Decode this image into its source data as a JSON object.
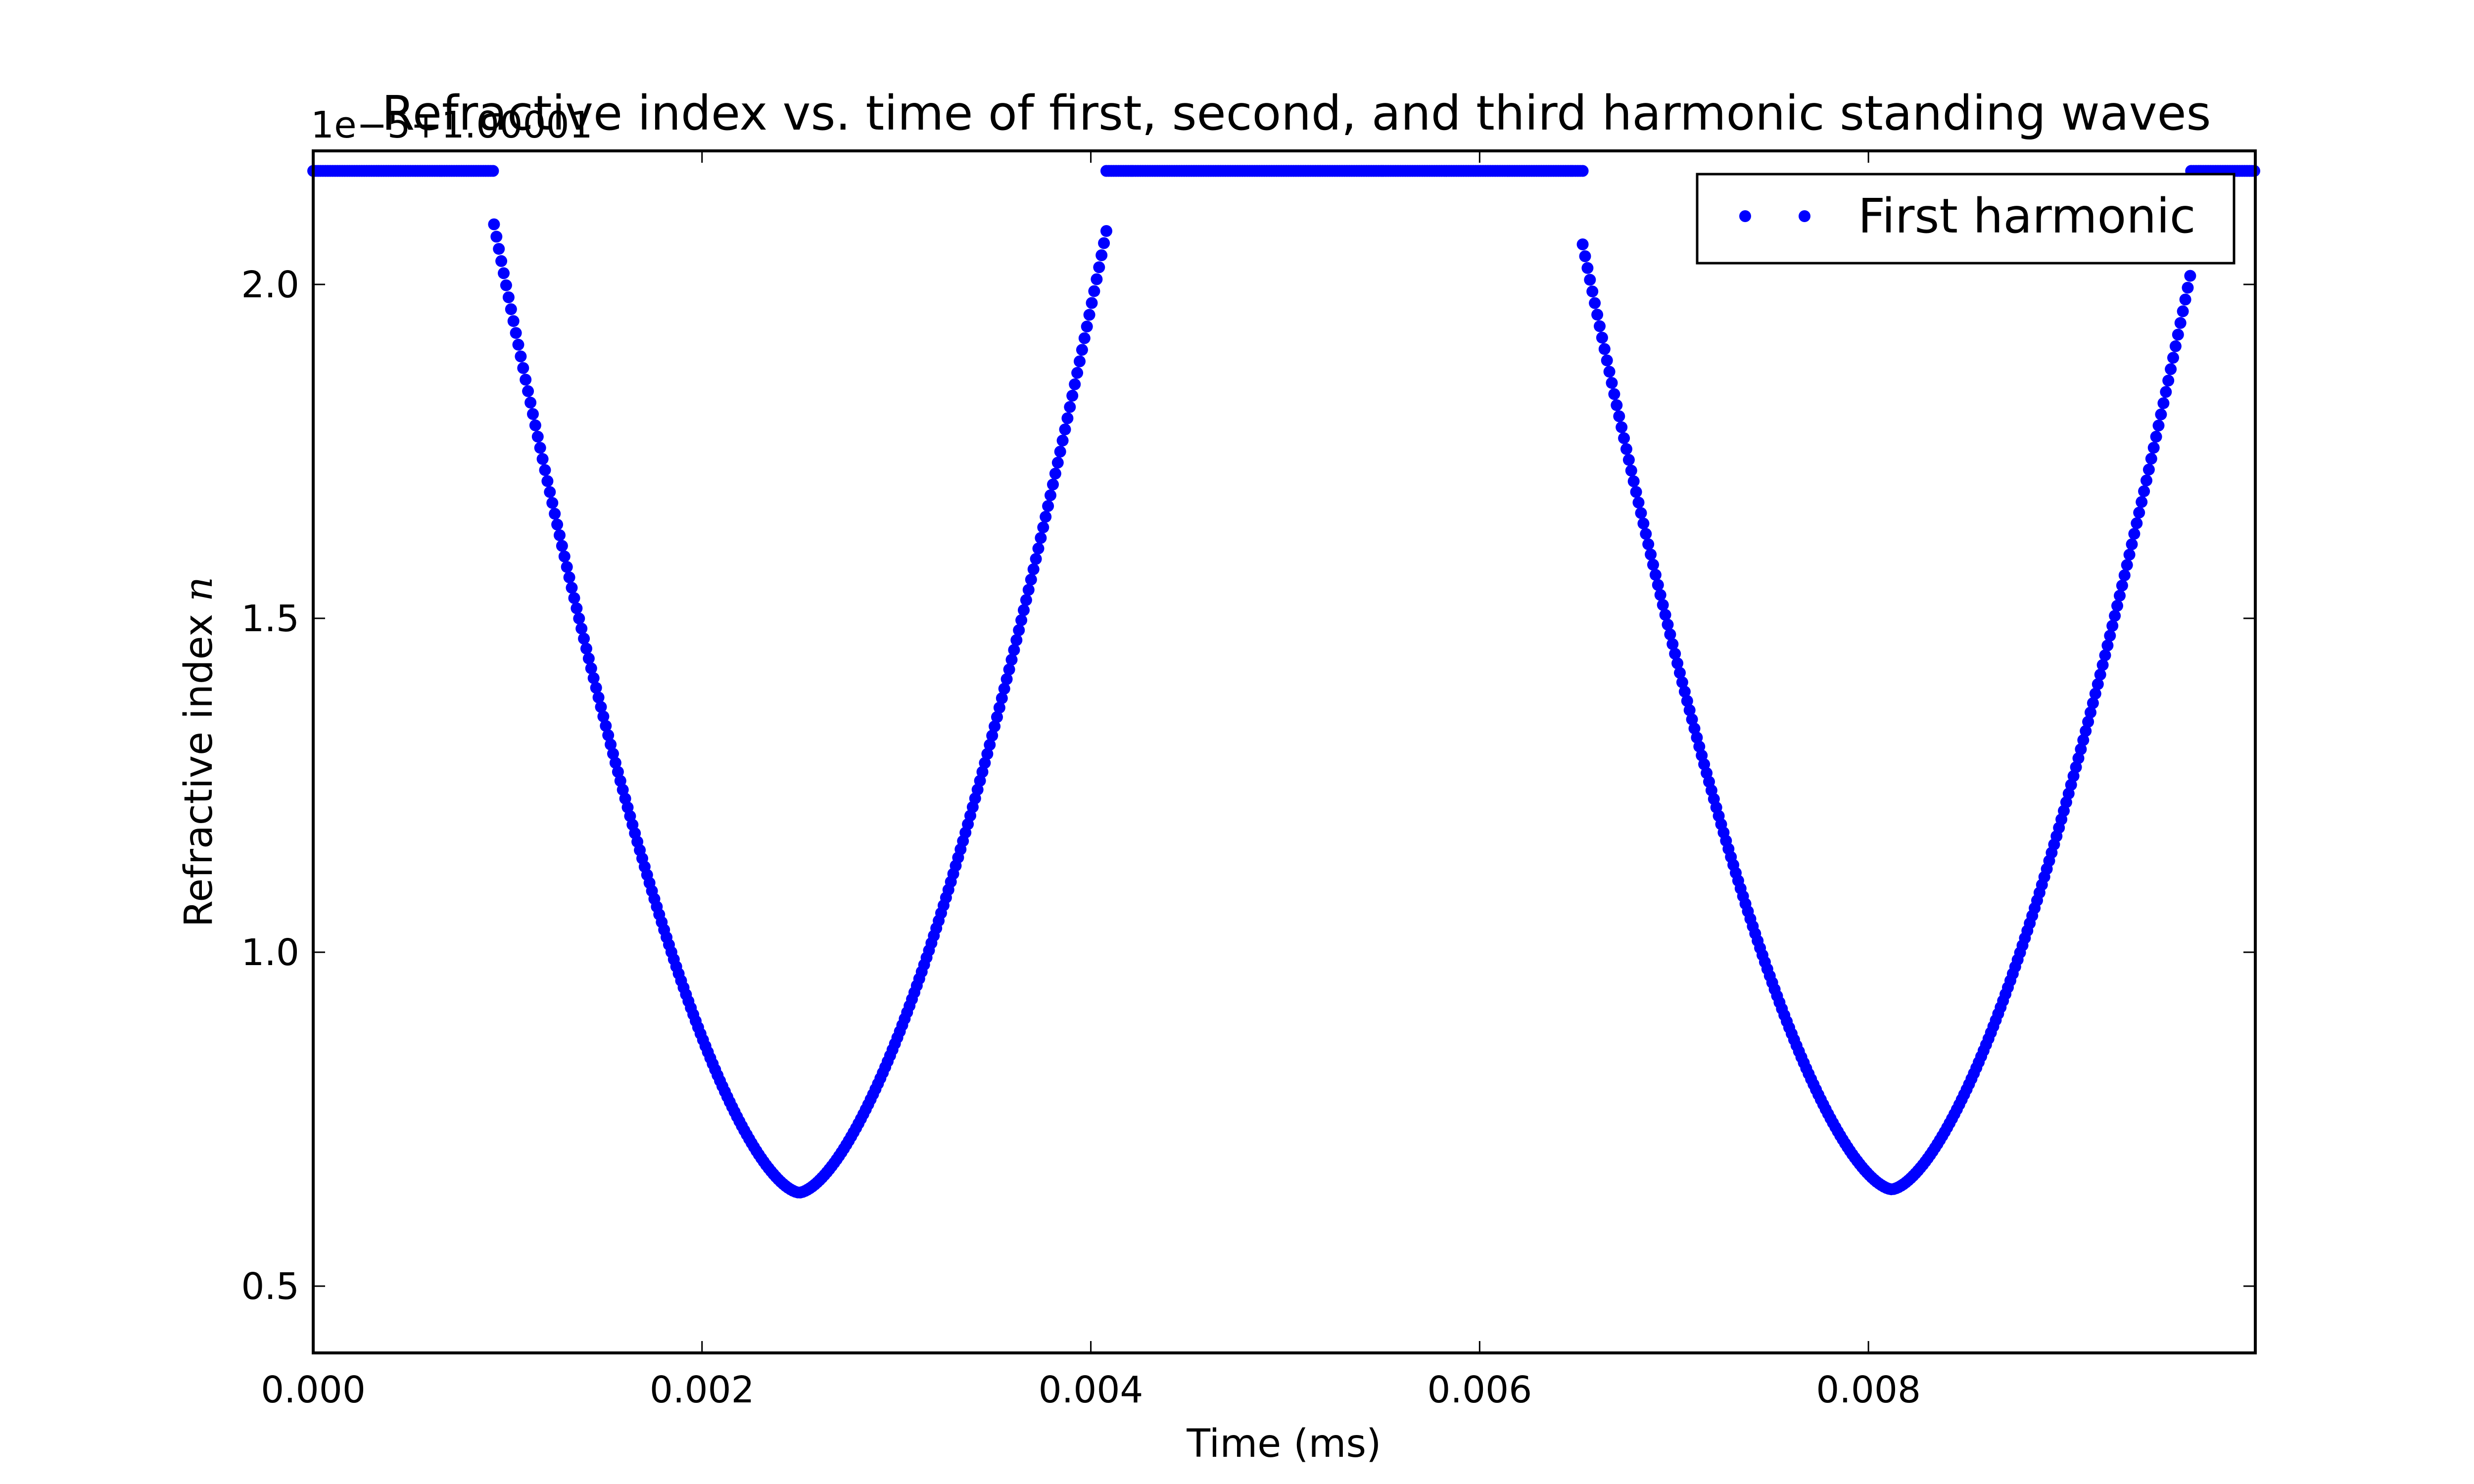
{
  "chart_data": {
    "type": "scatter",
    "title": "Refractive index vs. time of first, second, and third harmonic standing waves",
    "xlabel": "Time (ms)",
    "ylabel": "Refractive index n",
    "ylabel_var": "n",
    "y_offset_text": "1e−5+1.00001",
    "xlim": [
      0.0,
      0.00999
    ],
    "ylim": [
      0.4,
      2.2
    ],
    "xticks": [
      0.0,
      0.002,
      0.004,
      0.006,
      0.008
    ],
    "xtick_labels": [
      "0.000",
      "0.002",
      "0.004",
      "0.006",
      "0.008"
    ],
    "yticks": [
      0.5,
      1.0,
      1.5,
      2.0
    ],
    "ytick_labels": [
      "0.5",
      "1.0",
      "1.5",
      "2.0"
    ],
    "grid": false,
    "legend_position": "top-right",
    "color": "#0000ff",
    "series": [
      {
        "name": "First harmonic",
        "marker": "dot",
        "segments": [
          {
            "kind": "flat",
            "x_start": 0.0,
            "x_end": 0.00093,
            "y": 2.17
          },
          {
            "kind": "valley",
            "x_start": 0.00093,
            "x_end": 0.00408,
            "x_min": 0.0025,
            "y_min": 0.64,
            "y_start": 2.09,
            "y_end": 2.08
          },
          {
            "kind": "flat",
            "x_start": 0.00408,
            "x_end": 0.00653,
            "y": 2.17
          },
          {
            "kind": "valley",
            "x_start": 0.00653,
            "x_end": 0.00966,
            "x_min": 0.00812,
            "y_min": 0.645,
            "y_start": 2.06,
            "y_end": 2.02
          },
          {
            "kind": "flat",
            "x_start": 0.00966,
            "x_end": 0.00999,
            "y": 2.17
          }
        ]
      }
    ]
  }
}
